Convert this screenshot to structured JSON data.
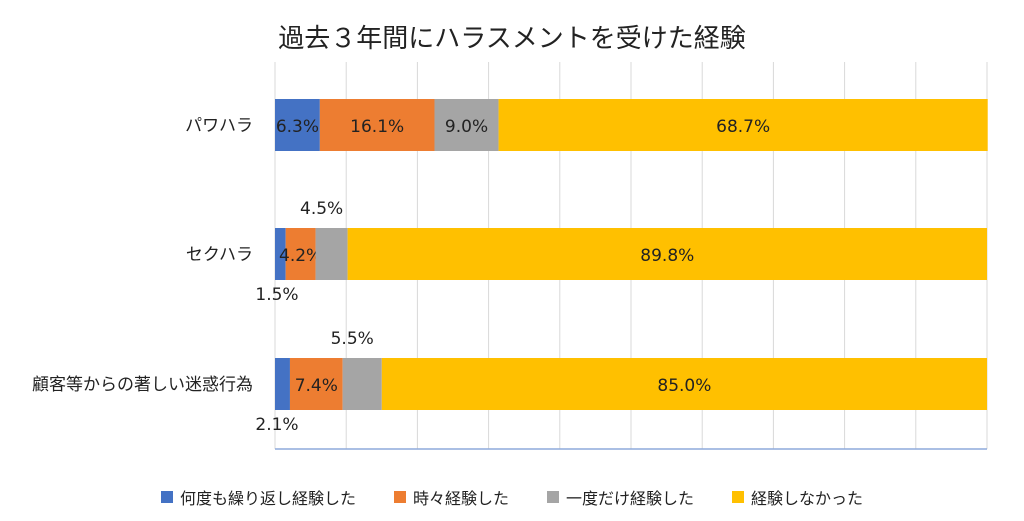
{
  "chart_data": {
    "type": "bar",
    "orientation": "horizontal",
    "stacked": true,
    "title": "過去３年間にハラスメントを受けた経験",
    "categories": [
      "パワハラ",
      "セクハラ",
      "顧客等からの著しい迷惑行為"
    ],
    "series": [
      {
        "name": "何度も繰り返し経験した",
        "color": "#4472C4",
        "values": [
          6.3,
          1.5,
          2.1
        ],
        "labels": [
          "6.3%",
          "1.5%",
          "2.1%"
        ]
      },
      {
        "name": "時々経験した",
        "color": "#ED7D31",
        "values": [
          16.1,
          4.2,
          7.4
        ],
        "labels": [
          "16.1%",
          "4.2%",
          "7.4%"
        ]
      },
      {
        "name": "一度だけ経験した",
        "color": "#A5A5A5",
        "values": [
          9.0,
          4.5,
          5.5
        ],
        "labels": [
          "9.0%",
          "4.5%",
          "5.5%"
        ]
      },
      {
        "name": "経験しなかった",
        "color": "#FFC000",
        "values": [
          68.7,
          89.8,
          85.0
        ],
        "labels": [
          "68.7%",
          "89.8%",
          "85.0%"
        ]
      }
    ],
    "xlim": [
      0,
      100
    ],
    "grid": true,
    "legend_position": "bottom"
  }
}
